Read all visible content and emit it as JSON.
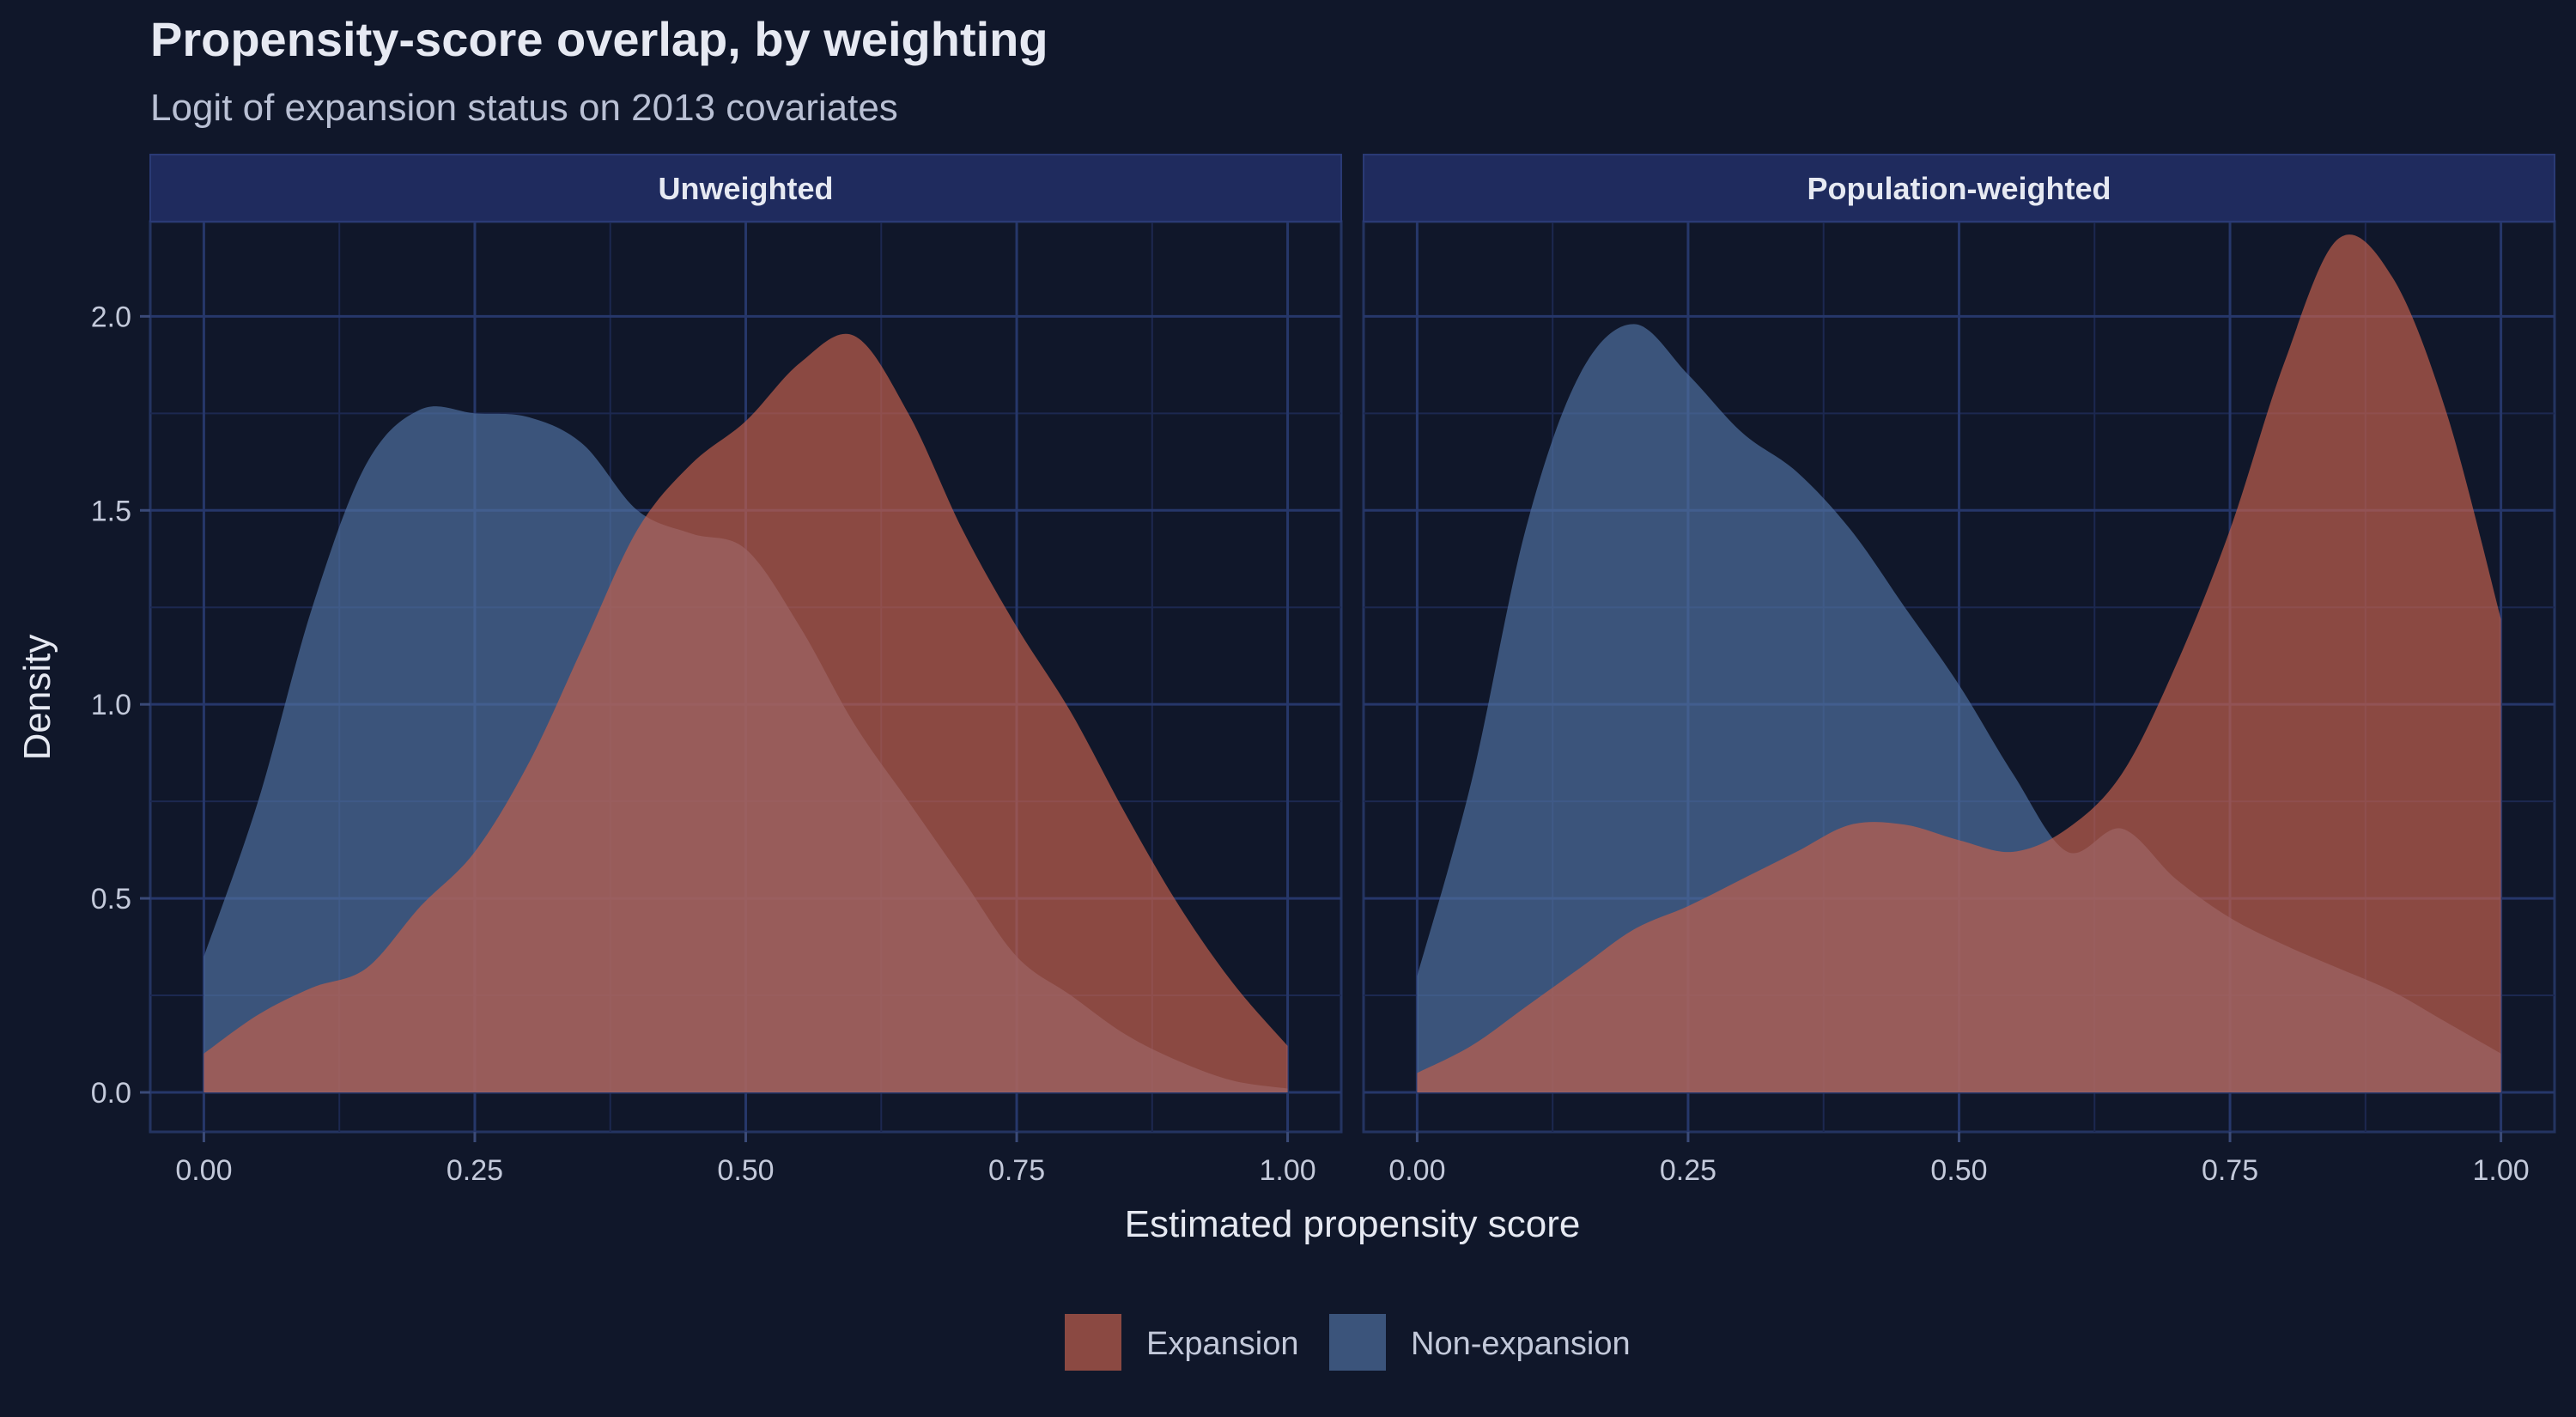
{
  "chart_data": {
    "type": "area",
    "title": "Propensity-score overlap, by weighting",
    "subtitle": "Logit of expansion status on 2013 covariates",
    "xlabel": "Estimated propensity score",
    "ylabel": "Density",
    "xlim": [
      0,
      1
    ],
    "ylim": [
      0,
      2.2
    ],
    "x_ticks": [
      "0.00",
      "0.25",
      "0.50",
      "0.75",
      "1.00"
    ],
    "y_ticks": [
      "0.0",
      "0.5",
      "1.0",
      "1.5",
      "2.0"
    ],
    "grid": true,
    "legend": {
      "position": "bottom",
      "items": [
        {
          "label": "Expansion",
          "color": "#c0604d"
        },
        {
          "label": "Non-expansion",
          "color": "#4e6f9e"
        }
      ]
    },
    "panels": [
      {
        "label": "Unweighted",
        "series": [
          {
            "name": "Non-expansion",
            "color": "#4e6f9e",
            "x": [
              0,
              0.05,
              0.1,
              0.15,
              0.2,
              0.25,
              0.3,
              0.35,
              0.4,
              0.45,
              0.5,
              0.55,
              0.6,
              0.65,
              0.7,
              0.75,
              0.8,
              0.85,
              0.9,
              0.95,
              1.0
            ],
            "y": [
              0.35,
              0.75,
              1.25,
              1.62,
              1.76,
              1.75,
              1.74,
              1.67,
              1.5,
              1.44,
              1.4,
              1.2,
              0.95,
              0.75,
              0.55,
              0.35,
              0.25,
              0.15,
              0.08,
              0.03,
              0.01
            ]
          },
          {
            "name": "Expansion",
            "color": "#c0604d",
            "x": [
              0,
              0.05,
              0.1,
              0.15,
              0.2,
              0.25,
              0.3,
              0.35,
              0.4,
              0.45,
              0.5,
              0.55,
              0.6,
              0.65,
              0.7,
              0.75,
              0.8,
              0.85,
              0.9,
              0.95,
              1.0
            ],
            "y": [
              0.1,
              0.2,
              0.27,
              0.32,
              0.48,
              0.62,
              0.85,
              1.15,
              1.45,
              1.62,
              1.73,
              1.88,
              1.95,
              1.75,
              1.45,
              1.2,
              0.98,
              0.72,
              0.48,
              0.28,
              0.12
            ]
          }
        ]
      },
      {
        "label": "Population-weighted",
        "series": [
          {
            "name": "Non-expansion",
            "color": "#4e6f9e",
            "x": [
              0,
              0.05,
              0.1,
              0.15,
              0.2,
              0.25,
              0.3,
              0.35,
              0.4,
              0.45,
              0.5,
              0.55,
              0.6,
              0.65,
              0.7,
              0.75,
              0.8,
              0.85,
              0.9,
              0.95,
              1.0
            ],
            "y": [
              0.3,
              0.8,
              1.45,
              1.85,
              1.98,
              1.85,
              1.7,
              1.6,
              1.45,
              1.25,
              1.05,
              0.82,
              0.62,
              0.68,
              0.55,
              0.45,
              0.38,
              0.32,
              0.26,
              0.18,
              0.1
            ]
          },
          {
            "name": "Expansion",
            "color": "#c0604d",
            "x": [
              0,
              0.05,
              0.1,
              0.15,
              0.2,
              0.25,
              0.3,
              0.35,
              0.4,
              0.45,
              0.5,
              0.55,
              0.6,
              0.65,
              0.7,
              0.75,
              0.8,
              0.85,
              0.9,
              0.95,
              1.0
            ],
            "y": [
              0.05,
              0.12,
              0.22,
              0.32,
              0.42,
              0.48,
              0.55,
              0.62,
              0.69,
              0.69,
              0.65,
              0.62,
              0.68,
              0.82,
              1.1,
              1.45,
              1.88,
              2.2,
              2.1,
              1.75,
              1.22
            ]
          }
        ]
      }
    ]
  }
}
